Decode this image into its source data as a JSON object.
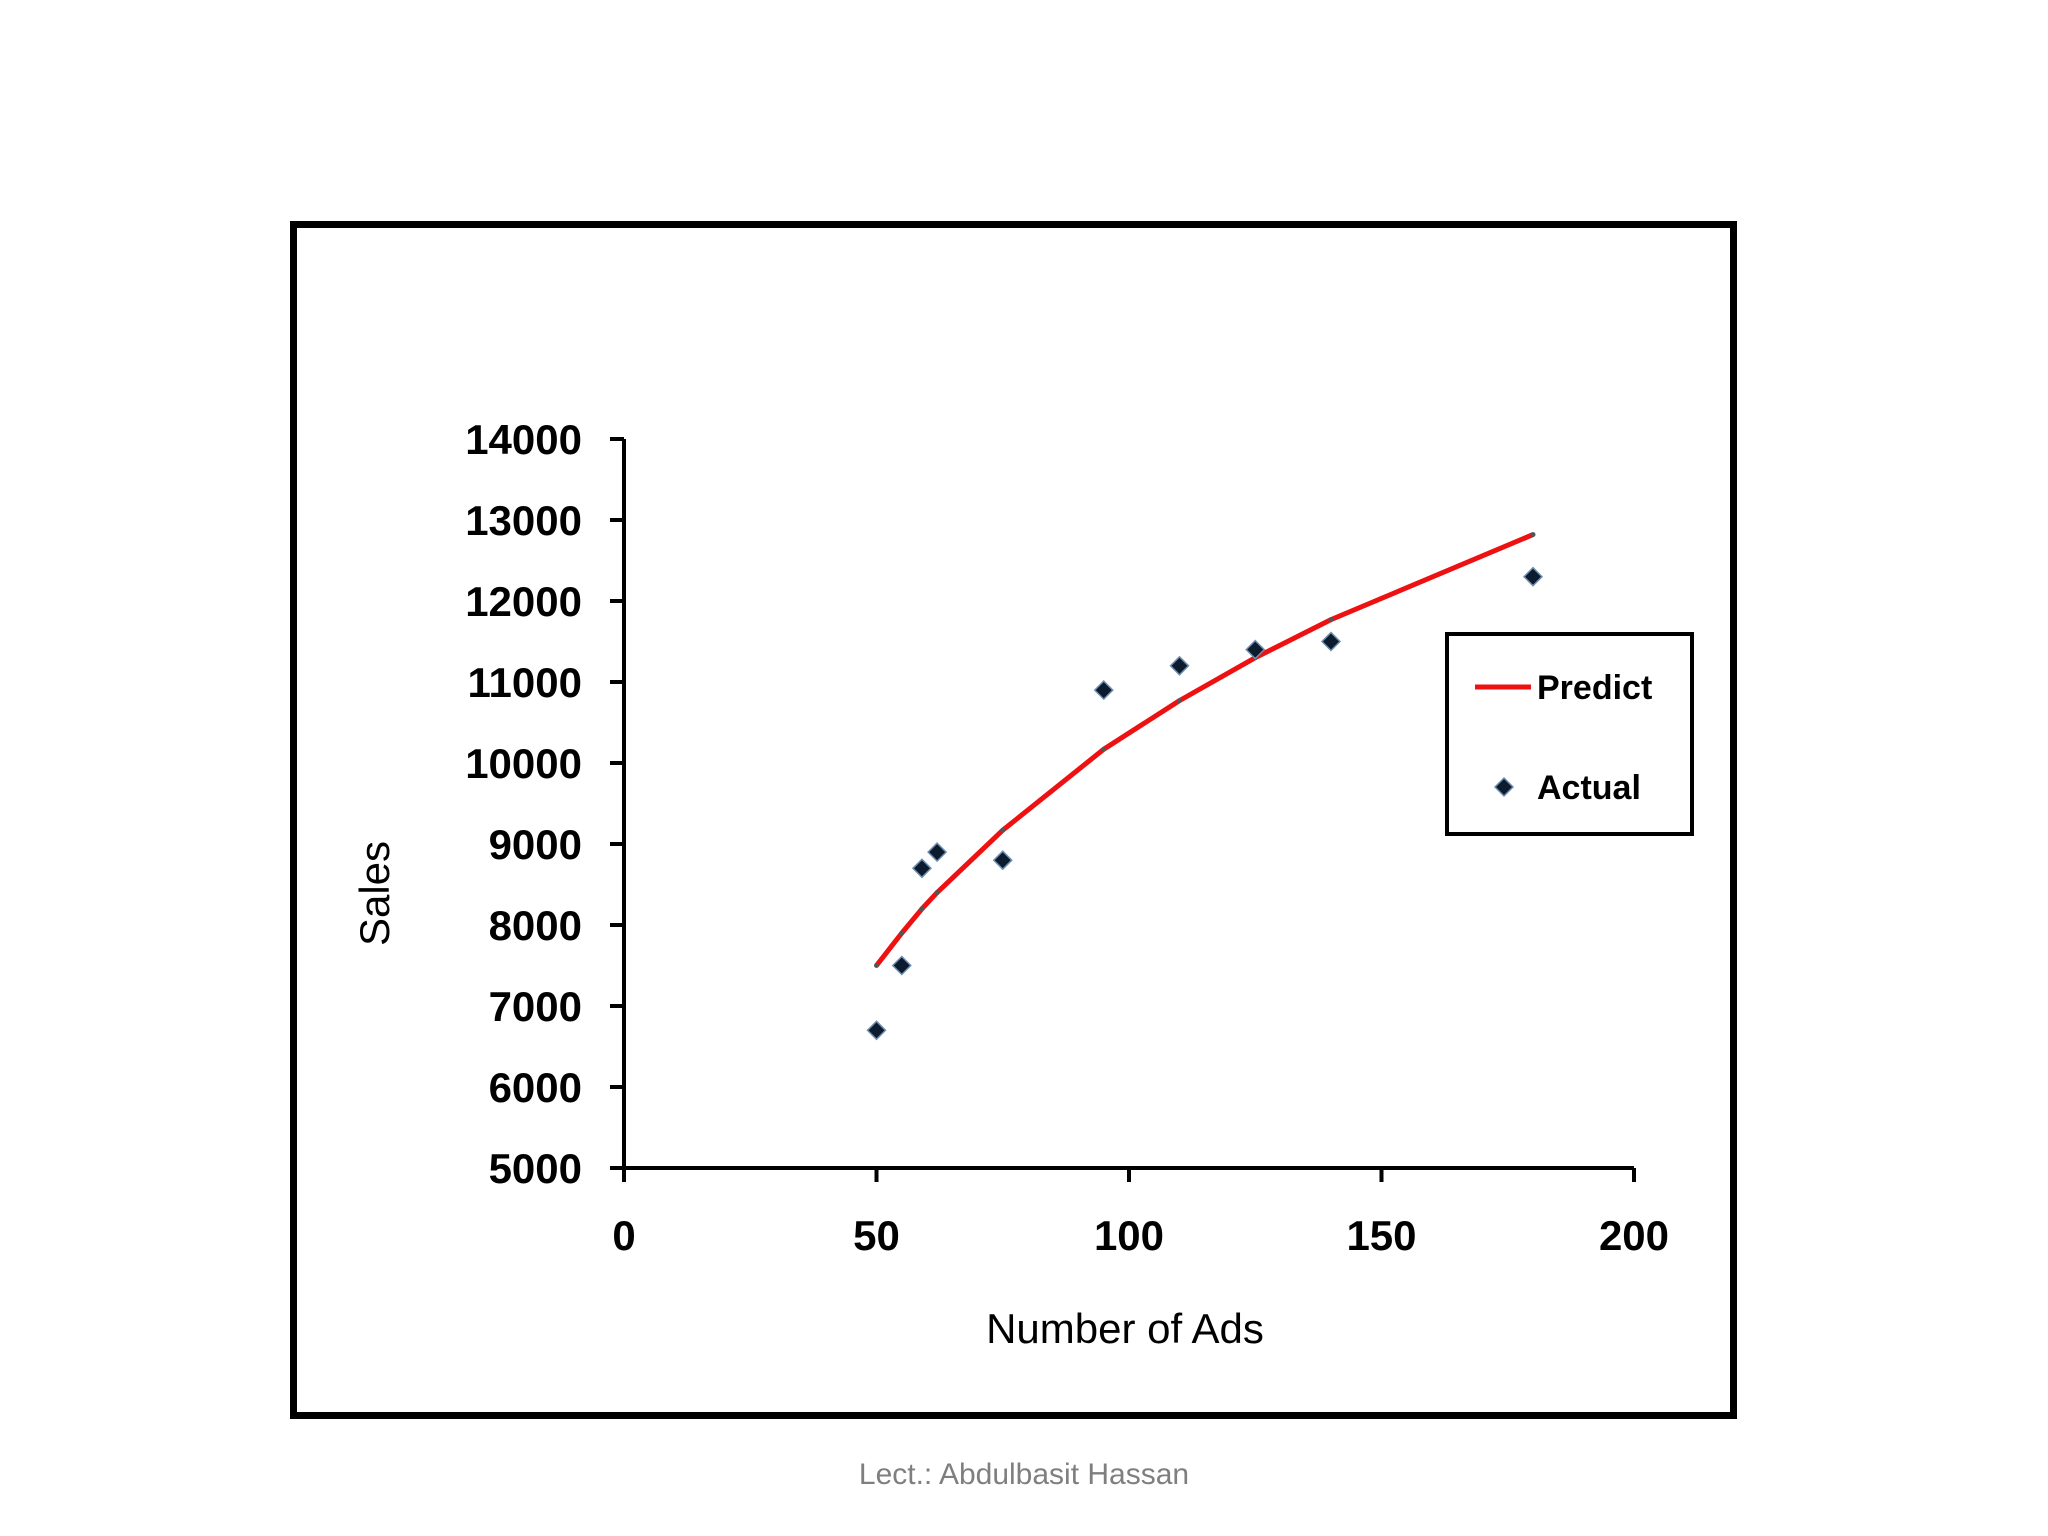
{
  "footer": {
    "text": "Lect.: Abdulbasit Hassan"
  },
  "colors": {
    "predict_line": "#ee1111",
    "actual_marker": "#0d1b2e",
    "frame": "#000000"
  },
  "chart_data": {
    "type": "scatter",
    "title": "",
    "xlabel": "Number of Ads",
    "ylabel": "Sales",
    "xlim": [
      0,
      200
    ],
    "ylim": [
      5000,
      14000
    ],
    "x_ticks": [
      "0",
      "50",
      "100",
      "150",
      "200"
    ],
    "y_ticks": [
      "5000",
      "6000",
      "7000",
      "8000",
      "9000",
      "10000",
      "11000",
      "12000",
      "13000",
      "14000"
    ],
    "grid": false,
    "legend_position": "right",
    "series": [
      {
        "name": "Predict",
        "kind": "line",
        "color": "#ee1111",
        "points": [
          {
            "x": 50,
            "y": 7500
          },
          {
            "x": 55,
            "y": 7900
          },
          {
            "x": 59,
            "y": 8200
          },
          {
            "x": 62,
            "y": 8400
          },
          {
            "x": 75,
            "y": 9170
          },
          {
            "x": 95,
            "y": 10170
          },
          {
            "x": 110,
            "y": 10770
          },
          {
            "x": 125,
            "y": 11300
          },
          {
            "x": 140,
            "y": 11770
          },
          {
            "x": 180,
            "y": 12820
          }
        ]
      },
      {
        "name": "Actual",
        "kind": "scatter",
        "marker": "diamond",
        "color": "#0d1b2e",
        "points": [
          {
            "x": 50,
            "y": 6700
          },
          {
            "x": 55,
            "y": 7500
          },
          {
            "x": 59,
            "y": 8700
          },
          {
            "x": 62,
            "y": 8900
          },
          {
            "x": 75,
            "y": 8800
          },
          {
            "x": 95,
            "y": 10900
          },
          {
            "x": 110,
            "y": 11200
          },
          {
            "x": 125,
            "y": 11400
          },
          {
            "x": 140,
            "y": 11500
          },
          {
            "x": 180,
            "y": 12300
          }
        ]
      }
    ]
  }
}
